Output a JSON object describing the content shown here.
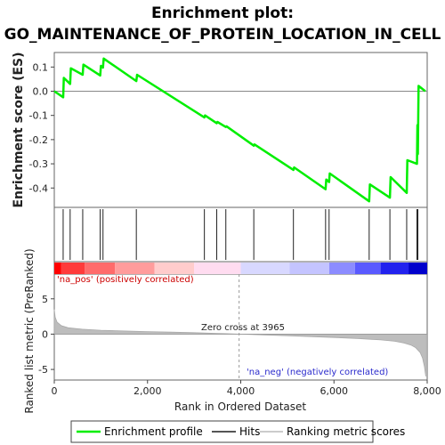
{
  "chart_data": {
    "type": "line",
    "title_line1": "Enrichment plot:",
    "title_line2": "GO_MAINTENANCE_OF_PROTEIN_LOCATION_IN_CELL",
    "xlabel": "Rank in Ordered Dataset",
    "ylabel_top": "Enrichment score (ES)",
    "ylabel_bottom": "Ranked list metric (PreRanked)",
    "x_range": [
      0,
      8000
    ],
    "es_ylim": [
      -0.48,
      0.16
    ],
    "metric_ylim": [
      -6.5,
      8.5
    ],
    "x_ticks": [
      0,
      2000,
      4000,
      6000,
      8000
    ],
    "x_tick_labels": [
      "0",
      "2,000",
      "4,000",
      "6,000",
      "8,000"
    ],
    "es_ticks": [
      0.1,
      0.0,
      -0.1,
      -0.2,
      -0.3,
      -0.4
    ],
    "es_tick_labels": [
      "0.1",
      "0.0",
      "-0.1",
      "-0.2",
      "-0.3",
      "-0.4"
    ],
    "metric_ticks": [
      5,
      0,
      -5
    ],
    "metric_tick_labels": [
      "5",
      "0",
      "-5"
    ],
    "enrichment_profile": {
      "name": "Enrichment profile",
      "color": "#00ee00",
      "x": [
        0,
        190,
        205,
        340,
        355,
        610,
        625,
        985,
        1000,
        1045,
        1060,
        1760,
        1775,
        3220,
        3235,
        3485,
        3500,
        3680,
        3695,
        4280,
        4295,
        5130,
        5145,
        5820,
        5835,
        5895,
        5910,
        6755,
        6770,
        7200,
        7215,
        7560,
        7575,
        7780,
        7790,
        7800,
        7815,
        7960
      ],
      "y": [
        0.0,
        -0.025,
        0.055,
        0.03,
        0.095,
        0.068,
        0.11,
        0.065,
        0.105,
        0.098,
        0.135,
        0.042,
        0.068,
        -0.108,
        -0.1,
        -0.132,
        -0.127,
        -0.148,
        -0.145,
        -0.225,
        -0.22,
        -0.325,
        -0.315,
        -0.405,
        -0.365,
        -0.375,
        -0.34,
        -0.455,
        -0.385,
        -0.44,
        -0.355,
        -0.42,
        -0.285,
        -0.3,
        -0.14,
        -0.26,
        0.022,
        0.0
      ]
    },
    "hits": [
      190,
      340,
      610,
      985,
      1045,
      1760,
      3220,
      3485,
      3680,
      4280,
      5130,
      5820,
      5895,
      6755,
      7200,
      7560,
      7780,
      7800
    ],
    "ranking_bar_colors": [
      "#ff0000",
      "#ff3b3b",
      "#ff6b6b",
      "#ff9c9c",
      "#ffcccc",
      "#ffdcf0",
      "#d8d8ff",
      "#c4c4ff",
      "#8c8cff",
      "#5a5aff",
      "#2222ee",
      "#0000cc"
    ],
    "ranking_bar_edges": [
      0,
      150,
      650,
      1300,
      2150,
      3000,
      4000,
      5050,
      5900,
      6450,
      7000,
      7600,
      8000
    ],
    "zero_cross": 3965,
    "zero_cross_label": "Zero cross at 3965",
    "pos_label": "'na_pos' (positively correlated)",
    "neg_label": "'na_neg' (negatively correlated)",
    "metric_profile": {
      "x": [
        0,
        20,
        60,
        150,
        300,
        600,
        1000,
        1500,
        2000,
        2500,
        3000,
        3500,
        3965,
        4500,
        5000,
        5500,
        6000,
        6500,
        7000,
        7300,
        7500,
        7650,
        7750,
        7850,
        7900,
        7940,
        7970
      ],
      "y": [
        3.5,
        2.4,
        1.7,
        1.2,
        0.9,
        0.7,
        0.55,
        0.45,
        0.36,
        0.28,
        0.2,
        0.1,
        0.0,
        -0.12,
        -0.22,
        -0.35,
        -0.48,
        -0.62,
        -0.82,
        -1.0,
        -1.25,
        -1.55,
        -1.9,
        -2.6,
        -3.4,
        -4.6,
        -6.0
      ]
    },
    "legend": [
      "Enrichment profile",
      "Hits",
      "Ranking metric scores"
    ]
  }
}
